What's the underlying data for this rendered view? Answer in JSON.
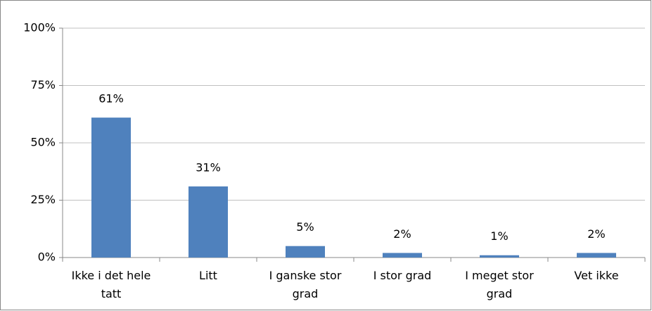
{
  "chart_data": {
    "type": "bar",
    "categories": [
      "Ikke i det hele tatt",
      "Litt",
      "I ganske stor grad",
      "I stor grad",
      "I meget stor grad",
      "Vet ikke"
    ],
    "values": [
      61,
      31,
      5,
      2,
      1,
      2
    ],
    "value_labels": [
      "61%",
      "31%",
      "5%",
      "2%",
      "1%",
      "2%"
    ],
    "color": "#4f81bd",
    "ylim": [
      0,
      100
    ],
    "yticks": [
      {
        "value": 0,
        "label": "0%"
      },
      {
        "value": 25,
        "label": "25%"
      },
      {
        "value": 50,
        "label": "50%"
      },
      {
        "value": 75,
        "label": "75%"
      },
      {
        "value": 100,
        "label": "100%"
      }
    ],
    "grid": true
  }
}
